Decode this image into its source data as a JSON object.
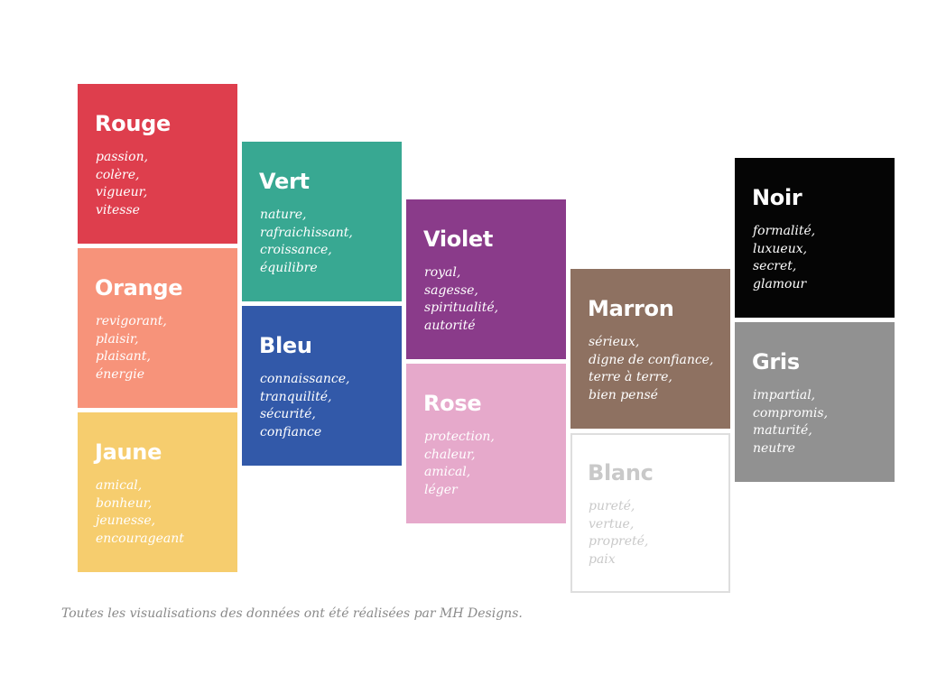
{
  "colors": [
    {
      "name": "Rouge",
      "bg": "#de3e4d",
      "fg": "#ffffff",
      "words": [
        "passion,",
        "colère,",
        "vigueur,",
        "vitesse"
      ]
    },
    {
      "name": "Orange",
      "bg": "#f7937a",
      "fg": "#ffffff",
      "words": [
        "revigorant,",
        "plaisir,",
        "plaisant,",
        "énergie"
      ]
    },
    {
      "name": "Jaune",
      "bg": "#f6cd6e",
      "fg": "#ffffff",
      "words": [
        "amical,",
        "bonheur,",
        "jeunesse,",
        "encourageant"
      ]
    },
    {
      "name": "Vert",
      "bg": "#38a892",
      "fg": "#ffffff",
      "words": [
        "nature,",
        "rafraichissant,",
        "croissance,",
        "équilibre"
      ]
    },
    {
      "name": "Bleu",
      "bg": "#3259a9",
      "fg": "#ffffff",
      "words": [
        "connaissance,",
        "tranquilité,",
        "sécurité,",
        "confiance"
      ]
    },
    {
      "name": "Violet",
      "bg": "#8a3b8a",
      "fg": "#ffffff",
      "words": [
        "royal,",
        "sagesse,",
        "spiritualité,",
        "autorité"
      ]
    },
    {
      "name": "Rose",
      "bg": "#e6a9cb",
      "fg": "#ffffff",
      "words": [
        "protection,",
        "chaleur,",
        "amical,",
        "léger"
      ]
    },
    {
      "name": "Marron",
      "bg": "#8e7161",
      "fg": "#ffffff",
      "words": [
        "sérieux,",
        "digne de confiance,",
        "terre à terre,",
        "bien pensé"
      ]
    },
    {
      "name": "Blanc",
      "bg": "#ffffff",
      "fg": "#c9c9c9",
      "border": "#dedede",
      "words": [
        "pureté,",
        "vertue,",
        "propreté,",
        "paix"
      ]
    },
    {
      "name": "Noir",
      "bg": "#050505",
      "fg": "#ffffff",
      "words": [
        "formalité,",
        "luxueux,",
        "secret,",
        "glamour"
      ]
    },
    {
      "name": "Gris",
      "bg": "#919191",
      "fg": "#ffffff",
      "words": [
        "impartial,",
        "compromis,",
        "maturité,",
        "neutre"
      ]
    }
  ],
  "caption": "Toutes les visualisations des données ont été réalisées par MH Designs.",
  "caption_color": "#8a8a8a"
}
